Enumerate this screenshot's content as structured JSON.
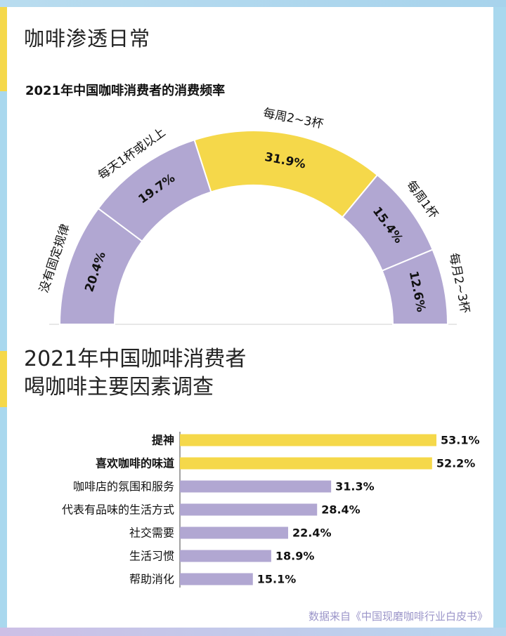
{
  "section1": {
    "title": "咖啡渗透日常",
    "subtitle": "2021年中国咖啡消费者的消费频率"
  },
  "section2": {
    "title_line1": "2021年中国咖啡消费者",
    "title_line2": "喝咖啡主要因素调查"
  },
  "source": "数据来自《中国现磨咖啡行业白皮书》",
  "colors": {
    "yellow": "#f5d84a",
    "purple": "#b1a7d2",
    "text": "#111111",
    "gray": "#cfcfcf"
  },
  "chart_data": [
    {
      "type": "pie",
      "style": "half-donut",
      "title": "2021年中国咖啡消费者的消费频率",
      "categories": [
        "没有固定规律",
        "每天1杯或以上",
        "每周2~3杯",
        "每周1杯",
        "每月2~3杯"
      ],
      "values": [
        20.4,
        19.7,
        31.9,
        15.4,
        12.6
      ],
      "labels": [
        "20.4%",
        "19.7%",
        "31.9%",
        "15.4%",
        "12.6%"
      ],
      "highlight": [
        false,
        false,
        true,
        false,
        false
      ]
    },
    {
      "type": "bar",
      "orientation": "horizontal",
      "title": "2021年中国咖啡消费者喝咖啡主要因素调查",
      "categories": [
        "提神",
        "喜欢咖啡的味道",
        "咖啡店的氛围和服务",
        "代表有品味的生活方式",
        "社交需要",
        "生活习惯",
        "帮助消化"
      ],
      "values": [
        53.1,
        52.2,
        31.3,
        28.4,
        22.4,
        18.9,
        15.1
      ],
      "labels": [
        "53.1%",
        "52.2%",
        "31.3%",
        "28.4%",
        "22.4%",
        "18.9%",
        "15.1%"
      ],
      "highlight": [
        true,
        true,
        false,
        false,
        false,
        false,
        false
      ]
    }
  ]
}
